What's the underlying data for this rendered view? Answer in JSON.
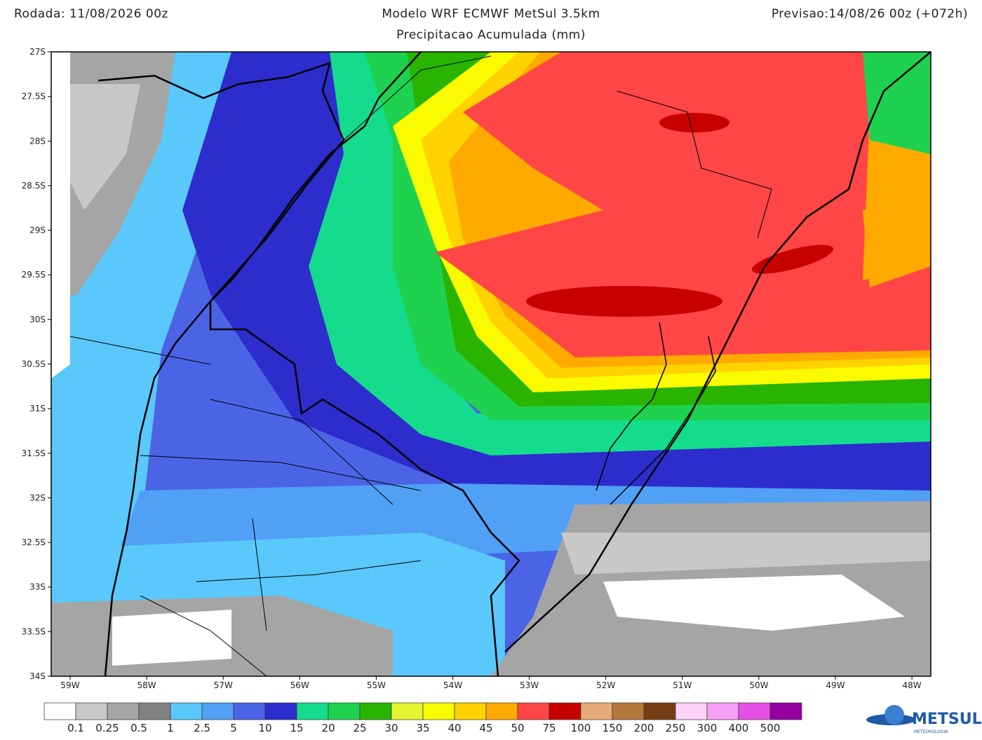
{
  "header": {
    "left": "Rodada: 11/08/2026 00z",
    "title": "Modelo WRF ECMWF MetSul 3.5km",
    "subtitle": "Precipitacao Acumulada (mm)",
    "right": "Previsao:14/08/26 00z (+072h)"
  },
  "map": {
    "lat_labels": [
      "27S",
      "27.5S",
      "28S",
      "28.5S",
      "29S",
      "29.5S",
      "30S",
      "30.5S",
      "31S",
      "31.5S",
      "32S",
      "32.5S",
      "33S",
      "33.5S",
      "34S"
    ],
    "lon_labels": [
      "59W",
      "58W",
      "57W",
      "56W",
      "55W",
      "54W",
      "53W",
      "52W",
      "51W",
      "50W",
      "49W",
      "48W"
    ]
  },
  "colorbar": {
    "levels": [
      0.1,
      0.25,
      0.5,
      1,
      2.5,
      5,
      10,
      15,
      20,
      25,
      30,
      35,
      40,
      45,
      50,
      75,
      100,
      150,
      200,
      250,
      300,
      400,
      500
    ],
    "colors": [
      "#ffffff",
      "#c8c8c8",
      "#a5a5a5",
      "#828282",
      "#5ac8fa",
      "#50a0f5",
      "#4b64e6",
      "#2d2dcd",
      "#14dc8c",
      "#1ed250",
      "#28b400",
      "#e6f532",
      "#fafa00",
      "#ffd200",
      "#ffaa00",
      "#ff4646",
      "#c80000",
      "#e6aa78",
      "#b4783c",
      "#783c14",
      "#ffd2fa",
      "#f5a0f5",
      "#e650e6",
      "#9600a0"
    ]
  },
  "logo": {
    "text": "METSUL",
    "subtext": "METEOROLOGIA"
  }
}
